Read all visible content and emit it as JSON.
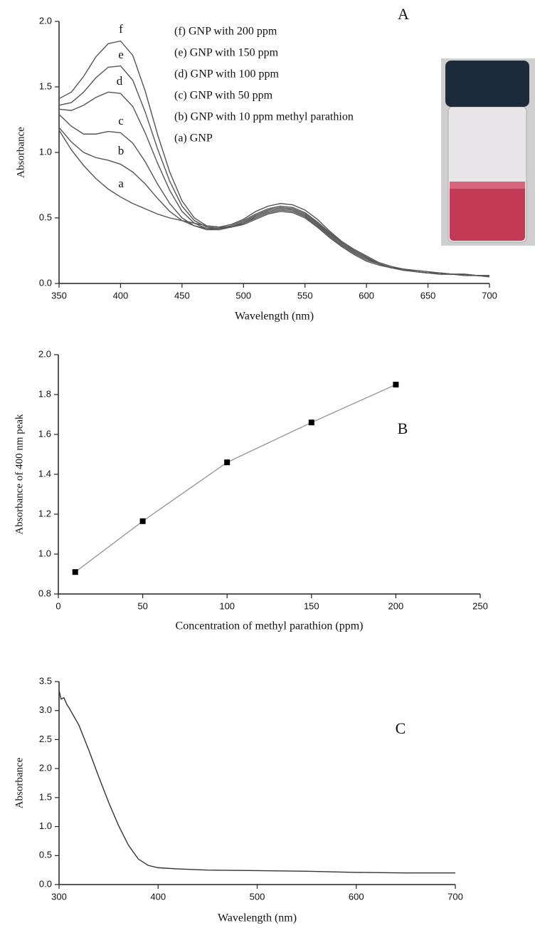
{
  "chart_data": [
    {
      "type": "line",
      "annotation": "A",
      "xlabel": "Wavelength (nm)",
      "ylabel": "Absorbance",
      "xlim": [
        350,
        700
      ],
      "ylim": [
        0,
        2
      ],
      "xticks": [
        350,
        400,
        450,
        500,
        550,
        600,
        650,
        700
      ],
      "yticks": [
        {
          "value": 0,
          "label": "0.0"
        },
        0.5,
        {
          "value": 1,
          "label": "1.0"
        },
        1.5,
        {
          "value": 2,
          "label": "2.0"
        }
      ],
      "x": [
        350,
        360,
        370,
        380,
        390,
        400,
        410,
        420,
        430,
        440,
        450,
        460,
        470,
        480,
        490,
        500,
        510,
        520,
        530,
        540,
        550,
        560,
        570,
        580,
        590,
        600,
        610,
        620,
        630,
        640,
        650,
        660,
        670,
        680,
        690,
        700
      ],
      "series": [
        {
          "name": "(f) GNP with 200 ppm",
          "label": "f",
          "color": "#555555",
          "values": [
            1.41,
            1.46,
            1.58,
            1.73,
            1.83,
            1.85,
            1.74,
            1.47,
            1.14,
            0.85,
            0.63,
            0.5,
            0.44,
            0.43,
            0.45,
            0.49,
            0.55,
            0.59,
            0.61,
            0.6,
            0.56,
            0.49,
            0.4,
            0.32,
            0.26,
            0.21,
            0.16,
            0.13,
            0.11,
            0.1,
            0.09,
            0.08,
            0.07,
            0.07,
            0.06,
            0.06
          ]
        },
        {
          "name": "(e) GNP with 150 ppm",
          "label": "e",
          "color": "#555555",
          "values": [
            1.36,
            1.38,
            1.46,
            1.57,
            1.65,
            1.66,
            1.55,
            1.31,
            1.03,
            0.78,
            0.59,
            0.48,
            0.43,
            0.42,
            0.44,
            0.48,
            0.53,
            0.57,
            0.59,
            0.58,
            0.54,
            0.47,
            0.39,
            0.31,
            0.25,
            0.2,
            0.15,
            0.12,
            0.11,
            0.09,
            0.08,
            0.08,
            0.07,
            0.07,
            0.06,
            0.06
          ]
        },
        {
          "name": "(d) GNP with 100 ppm",
          "label": "d",
          "color": "#555555",
          "values": [
            1.33,
            1.32,
            1.36,
            1.42,
            1.46,
            1.45,
            1.35,
            1.15,
            0.92,
            0.71,
            0.55,
            0.46,
            0.42,
            0.41,
            0.43,
            0.47,
            0.52,
            0.56,
            0.58,
            0.57,
            0.53,
            0.46,
            0.38,
            0.31,
            0.25,
            0.2,
            0.15,
            0.12,
            0.11,
            0.09,
            0.08,
            0.08,
            0.07,
            0.07,
            0.06,
            0.06
          ]
        },
        {
          "name": "(c) GNP with 50 ppm",
          "label": "c",
          "color": "#555555",
          "values": [
            1.29,
            1.2,
            1.14,
            1.14,
            1.16,
            1.15,
            1.07,
            0.93,
            0.76,
            0.61,
            0.5,
            0.44,
            0.41,
            0.41,
            0.43,
            0.46,
            0.51,
            0.55,
            0.57,
            0.56,
            0.52,
            0.45,
            0.37,
            0.3,
            0.24,
            0.19,
            0.15,
            0.12,
            0.11,
            0.09,
            0.08,
            0.08,
            0.07,
            0.07,
            0.06,
            0.06
          ]
        },
        {
          "name": "(b) GNP with 10 ppm methyl parathion",
          "label": "b",
          "color": "#555555",
          "values": [
            1.19,
            1.08,
            1.0,
            0.96,
            0.94,
            0.91,
            0.85,
            0.76,
            0.65,
            0.55,
            0.48,
            0.44,
            0.42,
            0.42,
            0.43,
            0.46,
            0.5,
            0.54,
            0.56,
            0.55,
            0.51,
            0.44,
            0.36,
            0.29,
            0.23,
            0.18,
            0.15,
            0.12,
            0.11,
            0.09,
            0.08,
            0.08,
            0.07,
            0.07,
            0.06,
            0.06
          ]
        },
        {
          "name": "(a) GNP",
          "label": "a",
          "color": "#555555",
          "values": [
            1.17,
            1.02,
            0.9,
            0.8,
            0.72,
            0.66,
            0.61,
            0.57,
            0.53,
            0.5,
            0.48,
            0.46,
            0.44,
            0.43,
            0.43,
            0.45,
            0.49,
            0.53,
            0.55,
            0.54,
            0.5,
            0.43,
            0.35,
            0.28,
            0.22,
            0.17,
            0.14,
            0.12,
            0.1,
            0.09,
            0.08,
            0.07,
            0.07,
            0.06,
            0.06,
            0.05
          ]
        }
      ]
    },
    {
      "type": "line",
      "markers": true,
      "annotation": "B",
      "xlabel": "Concentration of methyl parathion (ppm)",
      "ylabel": "Absorbance of 400 nm peak",
      "xlim": [
        0,
        250
      ],
      "ylim": [
        0.8,
        2
      ],
      "xticks": [
        0,
        50,
        100,
        150,
        200,
        250
      ],
      "yticks": [
        0.8,
        {
          "value": 1,
          "label": "1.0"
        },
        1.2,
        1.4,
        1.6,
        1.8,
        {
          "value": 2,
          "label": "2.0"
        }
      ],
      "x": [
        10,
        50,
        100,
        150,
        200
      ],
      "series": [
        {
          "color": "#999999",
          "marker_color": "#000000",
          "values": [
            0.91,
            1.165,
            1.46,
            1.66,
            1.85
          ]
        }
      ]
    },
    {
      "type": "line",
      "annotation": "C",
      "xlabel": "Wavelength (nm)",
      "ylabel": "Absorbance",
      "xlim": [
        300,
        700
      ],
      "ylim": [
        0,
        3.5
      ],
      "xticks": [
        300,
        400,
        500,
        600,
        700
      ],
      "yticks": [
        {
          "value": 0,
          "label": "0.0"
        },
        0.5,
        {
          "value": 1,
          "label": "1.0"
        },
        1.5,
        {
          "value": 2,
          "label": "2.0"
        },
        2.5,
        {
          "value": 3,
          "label": "3.0"
        },
        3.5
      ],
      "x": [
        300,
        302,
        305,
        308,
        310,
        320,
        330,
        340,
        350,
        360,
        370,
        380,
        390,
        400,
        420,
        450,
        500,
        550,
        600,
        650,
        700
      ],
      "series": [
        {
          "color": "#333333",
          "values": [
            3.35,
            3.2,
            3.22,
            3.1,
            3.05,
            2.75,
            2.32,
            1.86,
            1.42,
            1.02,
            0.68,
            0.44,
            0.33,
            0.29,
            0.27,
            0.25,
            0.24,
            0.23,
            0.21,
            0.2,
            0.2
          ]
        }
      ]
    }
  ]
}
